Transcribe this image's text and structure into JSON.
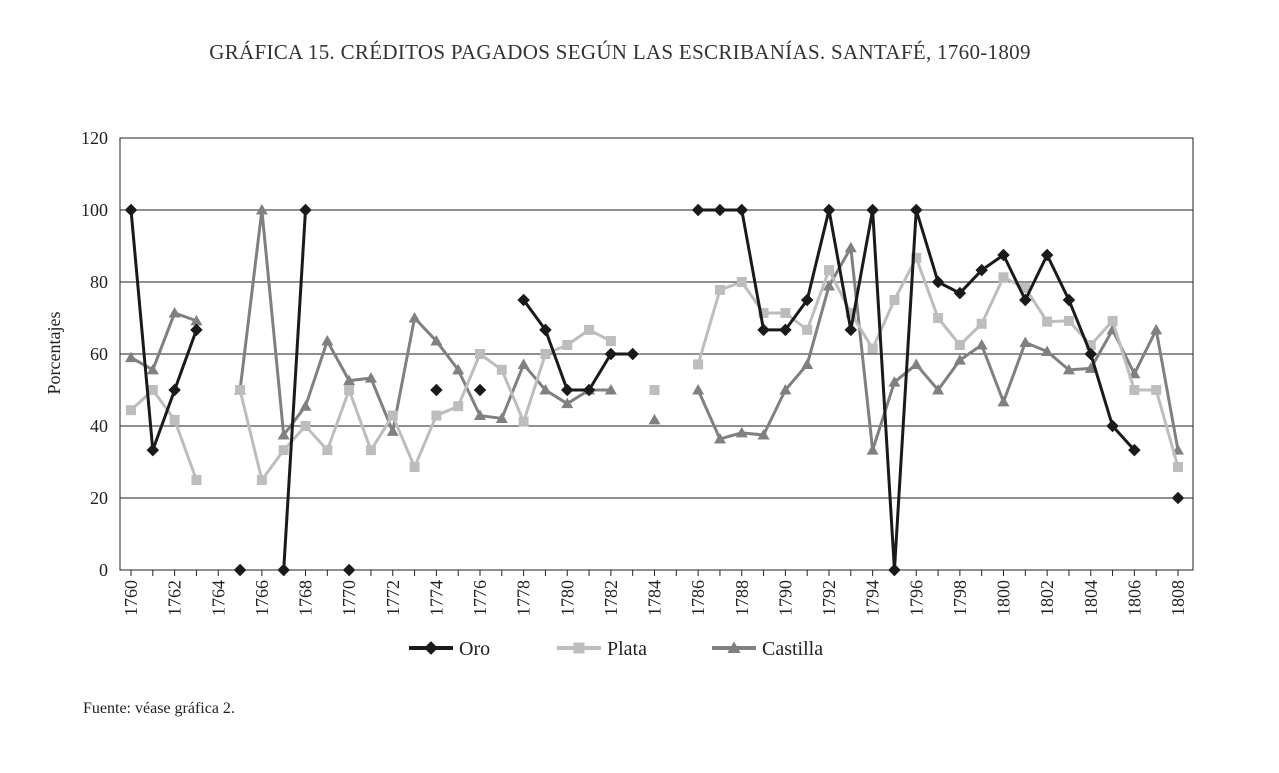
{
  "chart_data": {
    "type": "line",
    "title": "GRÁFICA 15. CRÉDITOS PAGADOS SEGÚN LAS ESCRIBANÍAS. SANTAFÉ, 1760-1809",
    "ylabel": "Porcentajes",
    "xlabel": "",
    "ylim": [
      0,
      120
    ],
    "yticks": [
      0,
      20,
      40,
      60,
      80,
      100,
      120
    ],
    "xlim": [
      1760,
      1808
    ],
    "xticks": [
      1760,
      1762,
      1764,
      1766,
      1768,
      1770,
      1772,
      1774,
      1776,
      1778,
      1780,
      1782,
      1784,
      1786,
      1788,
      1790,
      1792,
      1794,
      1796,
      1798,
      1800,
      1802,
      1804,
      1806,
      1808
    ],
    "grid": "horizontal",
    "legend": "bottom",
    "x": [
      1760,
      1761,
      1762,
      1763,
      1764,
      1765,
      1766,
      1767,
      1768,
      1769,
      1770,
      1771,
      1772,
      1773,
      1774,
      1775,
      1776,
      1777,
      1778,
      1779,
      1780,
      1781,
      1782,
      1783,
      1784,
      1785,
      1786,
      1787,
      1788,
      1789,
      1790,
      1791,
      1792,
      1793,
      1794,
      1795,
      1796,
      1797,
      1798,
      1799,
      1800,
      1801,
      1802,
      1803,
      1804,
      1805,
      1806,
      1807,
      1808
    ],
    "series": [
      {
        "name": "Oro",
        "color": "#1a1a1a",
        "marker": "diamond",
        "values": [
          100,
          33.3,
          50,
          66.7,
          null,
          0,
          null,
          0,
          100,
          null,
          0,
          null,
          null,
          null,
          50,
          null,
          50,
          null,
          75,
          66.7,
          50,
          50,
          60,
          60,
          null,
          null,
          100,
          100,
          100,
          66.7,
          66.7,
          75,
          100,
          66.7,
          100,
          0,
          100,
          80,
          76.9,
          83.3,
          87.5,
          75,
          87.5,
          75,
          60,
          40,
          33.3,
          null,
          20
        ]
      },
      {
        "name": "Plata",
        "color": "#bdbdbd",
        "marker": "square",
        "values": [
          44.4,
          50,
          41.7,
          25,
          null,
          50,
          25,
          33.3,
          40,
          33.3,
          50,
          33.3,
          42.9,
          28.6,
          42.9,
          45.5,
          60,
          55.6,
          41.2,
          60,
          62.5,
          66.7,
          63.6,
          null,
          50,
          null,
          57.1,
          77.8,
          80,
          71.4,
          71.4,
          66.7,
          83.3,
          71.4,
          61.5,
          75,
          86.7,
          70,
          62.5,
          68.4,
          81.3,
          78.3,
          69,
          69.2,
          62.5,
          69.2,
          50,
          50,
          28.6
        ]
      },
      {
        "name": "Castilla",
        "color": "#808080",
        "marker": "triangle",
        "values": [
          59,
          55.6,
          71.4,
          69.2,
          null,
          50,
          100,
          37.5,
          45.5,
          63.6,
          52.6,
          53.3,
          38.5,
          70,
          63.6,
          55.6,
          42.9,
          42.1,
          57.1,
          50,
          46.2,
          50,
          50,
          null,
          41.7,
          null,
          50,
          36.4,
          38.1,
          37.5,
          50,
          57.1,
          78.9,
          89.5,
          33.3,
          52.2,
          57.1,
          50,
          58.3,
          62.5,
          46.7,
          63.2,
          60.7,
          55.6,
          56,
          66.7,
          54.5,
          66.7,
          33.3
        ]
      }
    ]
  },
  "source": "Fuente: véase gráfica 2."
}
